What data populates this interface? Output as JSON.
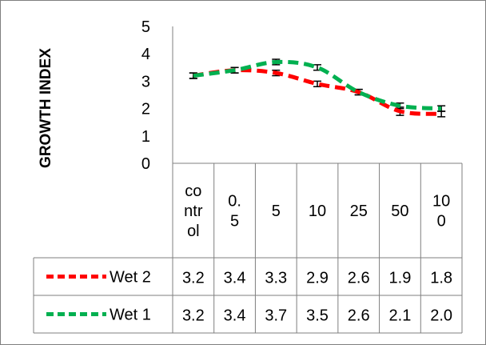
{
  "chart_data": {
    "type": "line",
    "ylabel": "GROWTH INDEX",
    "ylim": [
      0,
      5
    ],
    "yticks": [
      "0",
      "1",
      "2",
      "3",
      "4",
      "5"
    ],
    "categories": [
      "control",
      "0.5",
      "5",
      "10",
      "25",
      "50",
      "100"
    ],
    "category_display": [
      [
        "co",
        "ntr",
        "ol"
      ],
      [
        "0.",
        "5"
      ],
      [
        "5"
      ],
      [
        "10"
      ],
      [
        "25"
      ],
      [
        "50"
      ],
      [
        "10",
        "0"
      ]
    ],
    "series": [
      {
        "name": "Wet 2",
        "color": "#ff0000",
        "values": [
          3.2,
          3.4,
          3.3,
          2.9,
          2.6,
          1.9,
          1.8
        ],
        "errors": [
          0.1,
          0.1,
          0.1,
          0.1,
          0.1,
          0.15,
          0.1
        ]
      },
      {
        "name": "Wet 1",
        "color": "#00b050",
        "values": [
          3.2,
          3.4,
          3.7,
          3.5,
          2.6,
          2.1,
          2.0
        ],
        "errors": [
          0.1,
          0.1,
          0.1,
          0.1,
          0.1,
          0.1,
          0.1
        ]
      }
    ],
    "table_values": [
      [
        "3.2",
        "3.4",
        "3.3",
        "2.9",
        "2.6",
        "1.9",
        "1.8"
      ],
      [
        "3.2",
        "3.4",
        "3.7",
        "3.5",
        "2.6",
        "2.1",
        "2.0"
      ]
    ],
    "grid": false,
    "legend": "data-table"
  }
}
